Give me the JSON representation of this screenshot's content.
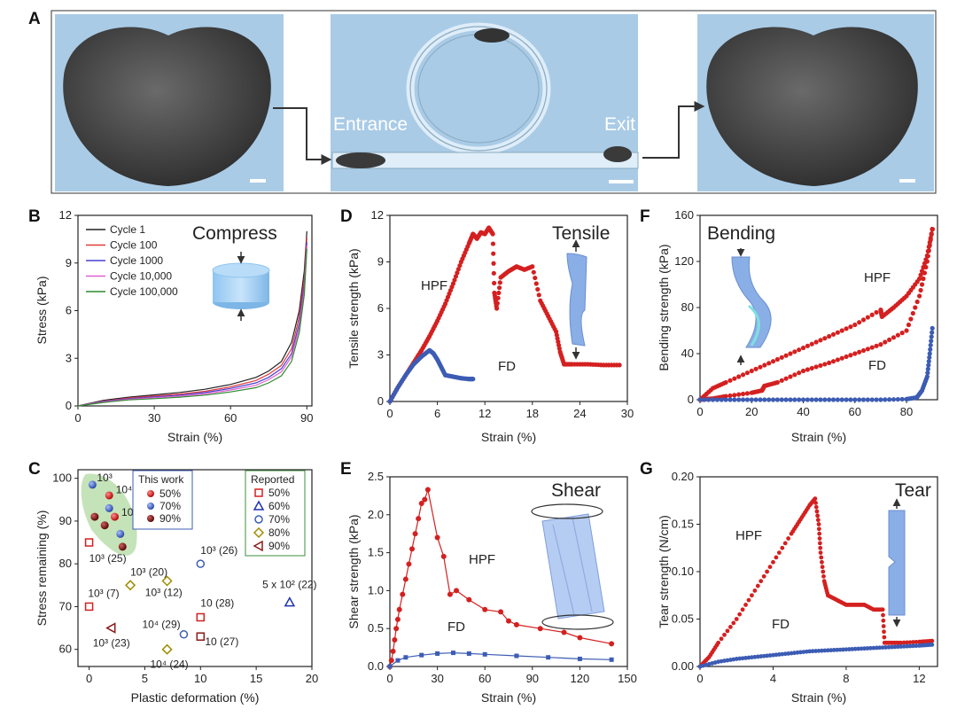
{
  "panels": {
    "A": "A",
    "B": "B",
    "C": "C",
    "D": "D",
    "E": "E",
    "F": "F",
    "G": "G"
  },
  "photo": {
    "entrance": "Entrance",
    "exit": "Exit"
  },
  "colors": {
    "red": "#d42020",
    "blue": "#3c5cb4",
    "green": "#3d8c3d",
    "photo_bg": "#a9cbe6",
    "hpf": "#d42020",
    "fd": "#3c5cb4"
  },
  "chart_data": [
    {
      "id": "B",
      "type": "line",
      "title": "Compress",
      "xlabel": "Strain (%)",
      "ylabel": "Stress (kPa)",
      "xlim": [
        0,
        92
      ],
      "ylim": [
        0,
        12
      ],
      "xticks": [
        "0",
        "30",
        "60",
        "90"
      ],
      "yticks": [
        "0",
        "3",
        "6",
        "9",
        "12"
      ],
      "legend": [
        "Cycle 1",
        "Cycle 100",
        "Cycle 1000",
        "Cycle 10,000",
        "Cycle 100,000"
      ],
      "series": [
        {
          "name": "Cycle 1",
          "color": "#222222",
          "x": [
            0,
            10,
            20,
            30,
            40,
            50,
            60,
            70,
            75,
            80,
            84,
            87,
            89,
            90
          ],
          "y": [
            0,
            0.35,
            0.55,
            0.7,
            0.85,
            1.05,
            1.35,
            1.8,
            2.2,
            2.8,
            4.0,
            6.0,
            8.5,
            11.0
          ]
        },
        {
          "name": "Cycle 100",
          "color": "#e03b3b",
          "x": [
            0,
            10,
            20,
            30,
            40,
            50,
            60,
            70,
            75,
            80,
            84,
            87,
            89,
            90
          ],
          "y": [
            0,
            0.3,
            0.5,
            0.62,
            0.75,
            0.92,
            1.2,
            1.6,
            2.0,
            2.55,
            3.6,
            5.6,
            8.0,
            10.6
          ]
        },
        {
          "name": "Cycle 1000",
          "color": "#4a3fd0",
          "x": [
            0,
            10,
            20,
            30,
            40,
            50,
            60,
            70,
            75,
            80,
            84,
            87,
            89,
            90
          ],
          "y": [
            0,
            0.28,
            0.45,
            0.57,
            0.68,
            0.84,
            1.1,
            1.45,
            1.8,
            2.35,
            3.3,
            5.2,
            7.6,
            10.3
          ]
        },
        {
          "name": "Cycle 10,000",
          "color": "#e060d0",
          "x": [
            0,
            10,
            20,
            30,
            40,
            50,
            60,
            70,
            75,
            80,
            84,
            87,
            89,
            90
          ],
          "y": [
            0,
            0.25,
            0.42,
            0.52,
            0.62,
            0.76,
            1.0,
            1.3,
            1.65,
            2.15,
            3.1,
            4.9,
            7.3,
            10.1
          ]
        },
        {
          "name": "Cycle 100,000",
          "color": "#2e8b2e",
          "x": [
            0,
            10,
            20,
            30,
            40,
            50,
            60,
            70,
            75,
            80,
            84,
            87,
            89,
            90
          ],
          "y": [
            0,
            0.22,
            0.38,
            0.46,
            0.55,
            0.68,
            0.88,
            1.15,
            1.45,
            1.9,
            2.8,
            4.6,
            7.0,
            9.9
          ]
        }
      ]
    },
    {
      "id": "C",
      "type": "scatter",
      "xlabel": "Plastic deformation (%)",
      "ylabel": "Stress remaining (%)",
      "xlim": [
        -1,
        20
      ],
      "ylim": [
        56,
        102
      ],
      "xticks": [
        "0",
        "5",
        "10",
        "15",
        "20"
      ],
      "yticks": [
        "60",
        "70",
        "80",
        "90",
        "100"
      ],
      "legend_this_work": {
        "title": "This work",
        "entries": [
          "50%",
          "70%",
          "90%"
        ]
      },
      "legend_reported": {
        "title": "Reported",
        "entries": [
          "50%",
          "60%",
          "70%",
          "80%",
          "90%"
        ]
      },
      "this_work": [
        {
          "x": 0.3,
          "y": 98.5,
          "group": "70%"
        },
        {
          "x": 1.8,
          "y": 96,
          "group": "50%"
        },
        {
          "x": 1.8,
          "y": 93,
          "group": "70%"
        },
        {
          "x": 0.5,
          "y": 91,
          "group": "90%"
        },
        {
          "x": 2.3,
          "y": 91,
          "group": "50%"
        },
        {
          "x": 1.4,
          "y": 89,
          "group": "90%"
        },
        {
          "x": 2.8,
          "y": 87,
          "group": "70%"
        },
        {
          "x": 3.0,
          "y": 84,
          "group": "90%"
        }
      ],
      "reported": [
        {
          "x": 0,
          "y": 85,
          "marker": "square",
          "color": "#d42020",
          "label": "10³ (25)"
        },
        {
          "x": 0,
          "y": 70,
          "marker": "square",
          "color": "#d42020",
          "label": "10³ (7)"
        },
        {
          "x": 10,
          "y": 80,
          "marker": "circle",
          "color": "#3c5cb4",
          "label": "10³ (26)"
        },
        {
          "x": 3.7,
          "y": 75,
          "marker": "diamond",
          "color": "#a08c00",
          "label": "10³ (20)"
        },
        {
          "x": 7,
          "y": 76,
          "marker": "diamond",
          "color": "#a08c00",
          "label": "10³ (12)"
        },
        {
          "x": 10,
          "y": 67.5,
          "marker": "square",
          "color": "#d42020",
          "label": "10 (28)"
        },
        {
          "x": 18,
          "y": 71,
          "marker": "triangle",
          "color": "#2030b0",
          "label": "5 x 10² (22)"
        },
        {
          "x": 8.5,
          "y": 63.5,
          "marker": "circle",
          "color": "#3c5cb4",
          "label": "10⁴ (29)"
        },
        {
          "x": 10,
          "y": 63,
          "marker": "square",
          "color": "#8b1a1a",
          "label": "10 (27)"
        },
        {
          "x": 2,
          "y": 65,
          "marker": "triangle-left",
          "color": "#8b1a1a",
          "label": "10³ (23)"
        },
        {
          "x": 7,
          "y": 60,
          "marker": "diamond",
          "color": "#a08c00",
          "label": "10⁴ (24)"
        }
      ],
      "in_plot_labels": [
        "10³",
        "10⁴",
        "10⁵"
      ]
    },
    {
      "id": "D",
      "type": "scatter",
      "title": "Tensile",
      "xlabel": "Strain (%)",
      "ylabel": "Tensile strength (kPa)",
      "xlim": [
        0,
        30
      ],
      "ylim": [
        0,
        12
      ],
      "xticks": [
        "0",
        "6",
        "12",
        "18",
        "24",
        "30"
      ],
      "yticks": [
        "0",
        "3",
        "6",
        "9",
        "12"
      ],
      "series": [
        {
          "name": "HPF",
          "color": "#d42020",
          "x": [
            0,
            1,
            2,
            3,
            4,
            5,
            6,
            7,
            8,
            9,
            10,
            10.5,
            11,
            11.5,
            12,
            12.5,
            13,
            13.2,
            13.5,
            14,
            15,
            16,
            17,
            18,
            19,
            20,
            21,
            21.5,
            22,
            23,
            25,
            27,
            29
          ],
          "y": [
            0,
            0.9,
            1.7,
            2.5,
            3.3,
            4.2,
            5.2,
            6.3,
            7.6,
            9.0,
            10.2,
            10.8,
            10.5,
            10.9,
            10.8,
            11.2,
            10.8,
            7.0,
            6.0,
            8.0,
            8.4,
            8.7,
            8.5,
            8.7,
            6.5,
            5.5,
            4.5,
            3.2,
            2.4,
            2.4,
            2.4,
            2.35,
            2.35
          ]
        },
        {
          "name": "FD",
          "color": "#3c5cb4",
          "x": [
            0,
            1,
            2,
            3,
            4,
            5,
            5.5,
            6,
            6.5,
            7,
            8,
            9,
            10,
            10.5
          ],
          "y": [
            0,
            0.9,
            1.7,
            2.4,
            2.9,
            3.3,
            3.1,
            2.7,
            2.2,
            1.7,
            1.6,
            1.5,
            1.45,
            1.45
          ]
        }
      ]
    },
    {
      "id": "E",
      "type": "line",
      "title": "Shear",
      "xlabel": "Strain (%)",
      "ylabel": "Shear strength (kPa)",
      "xlim": [
        0,
        150
      ],
      "ylim": [
        0,
        2.5
      ],
      "xticks": [
        "0",
        "30",
        "60",
        "90",
        "120",
        "150"
      ],
      "yticks": [
        "0.0",
        "0.5",
        "1.0",
        "1.5",
        "2.0",
        "2.5"
      ],
      "series": [
        {
          "name": "HPF",
          "color": "#d42020",
          "x": [
            0,
            1,
            2,
            3,
            4,
            5,
            6,
            8,
            10,
            12,
            14,
            16,
            18,
            20,
            22,
            24,
            30,
            34,
            38,
            42,
            50,
            60,
            70,
            75,
            80,
            95,
            110,
            120,
            140
          ],
          "y": [
            0,
            0.08,
            0.2,
            0.35,
            0.5,
            0.62,
            0.75,
            0.95,
            1.15,
            1.35,
            1.55,
            1.75,
            1.95,
            2.15,
            2.2,
            2.33,
            1.7,
            1.45,
            0.95,
            1.0,
            0.88,
            0.75,
            0.72,
            0.6,
            0.55,
            0.5,
            0.45,
            0.38,
            0.3
          ]
        },
        {
          "name": "FD",
          "color": "#3c5cb4",
          "x": [
            0,
            5,
            10,
            20,
            30,
            40,
            50,
            60,
            80,
            100,
            120,
            140
          ],
          "y": [
            0,
            0.08,
            0.12,
            0.15,
            0.17,
            0.18,
            0.17,
            0.16,
            0.14,
            0.12,
            0.1,
            0.09
          ]
        }
      ]
    },
    {
      "id": "F",
      "type": "scatter",
      "title": "Bending",
      "xlabel": "Strain (%)",
      "ylabel": "Bending strength (kPa)",
      "xlim": [
        0,
        92
      ],
      "ylim": [
        0,
        160
      ],
      "xticks": [
        "0",
        "20",
        "40",
        "60",
        "80"
      ],
      "yticks": [
        "0",
        "40",
        "80",
        "120",
        "160"
      ],
      "series": [
        {
          "name": "HPF",
          "color": "#d42020",
          "x": [
            0,
            5,
            10,
            20,
            30,
            40,
            50,
            60,
            70,
            70.5,
            75,
            80,
            85,
            88,
            90,
            90,
            88,
            85,
            80,
            70,
            60,
            50,
            40,
            30,
            25,
            24,
            20,
            10,
            5,
            2,
            0
          ],
          "y": [
            0,
            10,
            15,
            25,
            35,
            45,
            55,
            65,
            78,
            72,
            80,
            90,
            105,
            125,
            148,
            148,
            120,
            90,
            60,
            48,
            40,
            32,
            25,
            15,
            12,
            8,
            6,
            3,
            1,
            0.5,
            0
          ]
        },
        {
          "name": "FD",
          "color": "#3c5cb4",
          "x": [
            0,
            10,
            20,
            30,
            40,
            50,
            60,
            70,
            80,
            84,
            86,
            88,
            89,
            90
          ],
          "y": [
            0,
            0,
            0,
            0,
            0,
            0,
            0,
            0,
            0.5,
            2,
            8,
            20,
            40,
            62
          ]
        }
      ]
    },
    {
      "id": "G",
      "type": "scatter",
      "title": "Tear",
      "xlabel": "Strain (%)",
      "ylabel": "Tear strength (N/cm)",
      "xlim": [
        0,
        13
      ],
      "ylim": [
        0,
        0.2
      ],
      "xticks": [
        "0",
        "4",
        "8",
        "12"
      ],
      "yticks": [
        "0.00",
        "0.05",
        "0.10",
        "0.15",
        "0.20"
      ],
      "series": [
        {
          "name": "HPF",
          "color": "#d42020",
          "x": [
            0,
            0.5,
            1,
            2,
            3,
            4,
            5,
            5.5,
            6,
            6.3,
            6.5,
            6.6,
            6.8,
            7,
            7.5,
            8,
            8.5,
            9,
            9.5,
            10,
            10.1,
            10.5,
            11,
            12,
            12.7
          ],
          "y": [
            0,
            0.01,
            0.025,
            0.05,
            0.08,
            0.11,
            0.14,
            0.155,
            0.17,
            0.177,
            0.15,
            0.12,
            0.09,
            0.075,
            0.07,
            0.065,
            0.065,
            0.065,
            0.06,
            0.06,
            0.025,
            0.025,
            0.025,
            0.026,
            0.027
          ]
        },
        {
          "name": "FD",
          "color": "#3c5cb4",
          "x": [
            0,
            1,
            2,
            3,
            4,
            5,
            6,
            7,
            8,
            9,
            10,
            11,
            12,
            12.7
          ],
          "y": [
            0,
            0.005,
            0.008,
            0.01,
            0.012,
            0.014,
            0.016,
            0.017,
            0.018,
            0.019,
            0.02,
            0.021,
            0.022,
            0.023
          ]
        }
      ]
    }
  ]
}
